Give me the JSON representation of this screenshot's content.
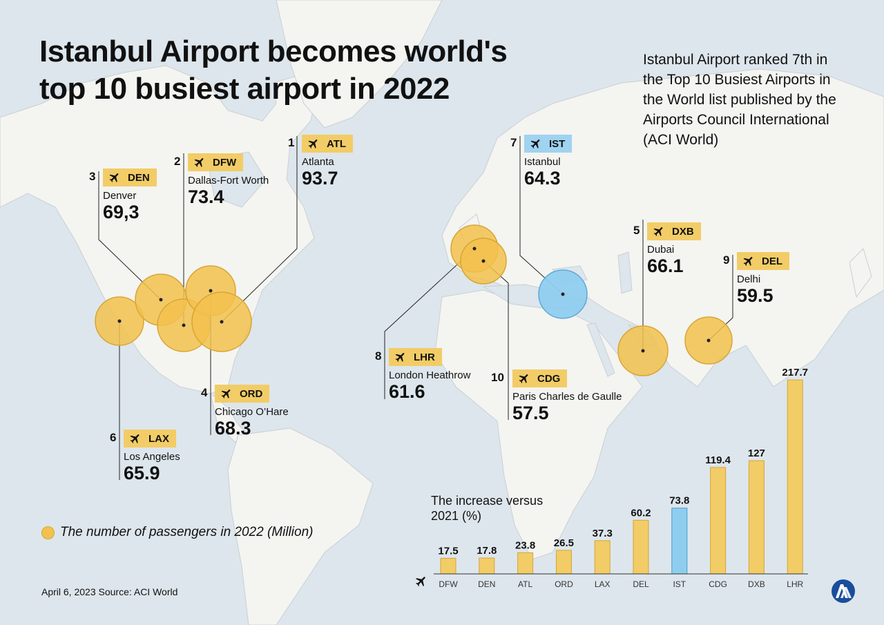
{
  "title_line1": "Istanbul Airport becomes world's",
  "title_line2": "top 10 busiest airport in 2022",
  "side_note": "Istanbul Airport ranked 7th in the Top 10 Busiest Airports in the World list published by the Airports Council International (ACI World)",
  "legend": "The number of passengers in 2022 (Million)",
  "footer": "April 6, 2023  Source: ACI World",
  "colors": {
    "bubble": "#f2c14e",
    "highlight": "#8fcdef",
    "tag": "#f2cc66"
  },
  "airports": [
    {
      "rank": "1",
      "code": "ATL",
      "city": "Atlanta",
      "value": "93.7",
      "icon": "plane-icon"
    },
    {
      "rank": "2",
      "code": "DFW",
      "city": "Dallas-Fort Worth",
      "value": "73.4",
      "icon": "plane-icon"
    },
    {
      "rank": "3",
      "code": "DEN",
      "city": "Denver",
      "value": "69,3",
      "icon": "plane-icon"
    },
    {
      "rank": "4",
      "code": "ORD",
      "city": "Chicago O’Hare",
      "value": "68.3",
      "icon": "plane-icon"
    },
    {
      "rank": "5",
      "code": "DXB",
      "city": "Dubai",
      "value": "66.1",
      "icon": "plane-icon"
    },
    {
      "rank": "6",
      "code": "LAX",
      "city": "Los Angeles",
      "value": "65.9",
      "icon": "plane-icon"
    },
    {
      "rank": "7",
      "code": "IST",
      "city": "Istanbul",
      "value": "64.3",
      "icon": "plane-icon"
    },
    {
      "rank": "8",
      "code": "LHR",
      "city": "London Heathrow",
      "value": "61.6",
      "icon": "plane-icon"
    },
    {
      "rank": "9",
      "code": "DEL",
      "city": "Delhi",
      "value": "59.5",
      "icon": "plane-icon"
    },
    {
      "rank": "10",
      "code": "CDG",
      "city": "Paris Charles de Gaulle",
      "value": "57.5",
      "icon": "plane-icon"
    }
  ],
  "chart_data": {
    "type": "bar",
    "title": "The increase versus 2021 (%)",
    "categories": [
      "DFW",
      "DEN",
      "ATL",
      "ORD",
      "LAX",
      "DEL",
      "IST",
      "CDG",
      "DXB",
      "LHR"
    ],
    "values": [
      17.5,
      17.8,
      23.8,
      26.5,
      37.3,
      60.2,
      73.8,
      119.4,
      127,
      217.7
    ],
    "highlight": "IST",
    "ylim": [
      0,
      217.7
    ],
    "axis_icon": "plane-icon"
  }
}
